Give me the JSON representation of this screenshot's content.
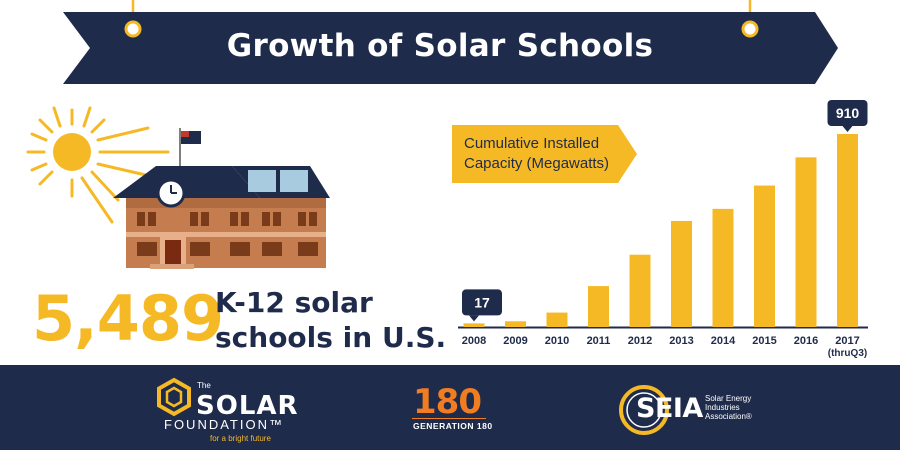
{
  "header": {
    "title": "Growth of Solar Schools"
  },
  "stat": {
    "number": "5,489",
    "caption_line1": "K-12 solar",
    "caption_line2": "schools in U.S."
  },
  "legend": {
    "line1": "Cumulative Installed",
    "line2": "Capacity (Megawatts)"
  },
  "colors": {
    "navy": "#1f2b4b",
    "accent": "#f6b926",
    "orange": "#f07d22"
  },
  "chart_data": {
    "type": "bar",
    "title": "Cumulative Installed Capacity (Megawatts)",
    "categories": [
      "2008",
      "2009",
      "2010",
      "2011",
      "2012",
      "2013",
      "2014",
      "2015",
      "2016",
      "2017"
    ],
    "category_sublabels": [
      "",
      "",
      "",
      "",
      "",
      "",
      "",
      "",
      "",
      "(thruQ3)"
    ],
    "values": [
      17,
      27,
      68,
      193,
      341,
      500,
      557,
      667,
      800,
      910
    ],
    "data_labels": [
      {
        "index": 0,
        "text": "17"
      },
      {
        "index": 9,
        "text": "910"
      }
    ],
    "ylim": [
      0,
      910
    ],
    "grid": false,
    "color": "#f6b926"
  },
  "logos": {
    "solar_foundation": {
      "the": "The",
      "name": "SOLAR",
      "foundation": "FOUNDATION™",
      "tagline": "for a bright future"
    },
    "generation180": {
      "number": "180",
      "name": "GENERATION 180"
    },
    "seia": {
      "abbr": "SEIA",
      "full_line1": "Solar Energy",
      "full_line2": "Industries",
      "full_line3": "Association®"
    }
  }
}
